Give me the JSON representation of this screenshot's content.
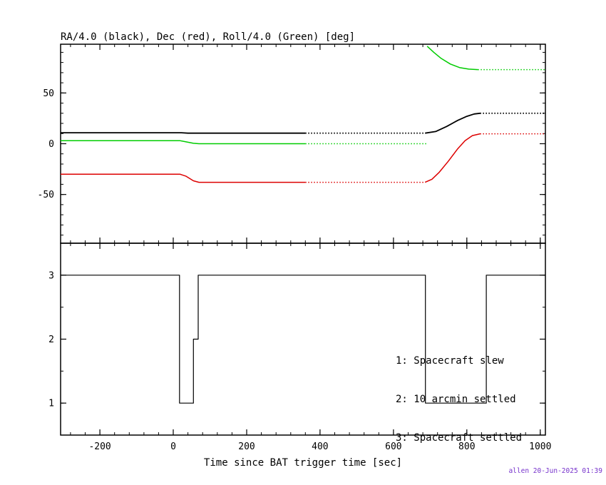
{
  "title": "RA/4.0 (black), Dec (red), Roll/4.0 (Green) [deg]",
  "xlabel": "Time since BAT trigger time [sec]",
  "footer": {
    "text": "allen 20-Jun-2025 01:39",
    "color": "#7733cc"
  },
  "colors": {
    "ra": "#000000",
    "dec": "#dd0000",
    "roll": "#00cc00",
    "frame": "#000000"
  },
  "chart_data": [
    {
      "type": "line",
      "title": "RA/4.0 (black), Dec (red), Roll/4.0 (Green) [deg]",
      "xlim": [
        -307,
        1014
      ],
      "ylim": [
        -98,
        98
      ],
      "x_minor": 40,
      "y_minor": 10,
      "grid": false,
      "show_x_labels": false,
      "xticks": [
        {
          "v": -200,
          "label": "-200"
        },
        {
          "v": 0,
          "label": "0"
        },
        {
          "v": 200,
          "label": "200"
        },
        {
          "v": 400,
          "label": "400"
        },
        {
          "v": 600,
          "label": "600"
        },
        {
          "v": 800,
          "label": "800"
        },
        {
          "v": 1000,
          "label": "1000"
        }
      ],
      "yticks": [
        {
          "v": 50,
          "label": "50"
        },
        {
          "v": 0,
          "label": "0"
        },
        {
          "v": -50,
          "label": "-50"
        }
      ],
      "series": [
        {
          "name": "RA/4.0 (black)",
          "color": "#000000",
          "width": 1.8,
          "segments": [
            {
              "dash": false,
              "points": [
                [
                  -307,
                  10.8
                ],
                [
                  22,
                  10.8
                ],
                [
                  40,
                  10.4
                ],
                [
                  360,
                  10.4
                ]
              ]
            },
            {
              "dash": true,
              "points": [
                [
                  360,
                  10.4
                ],
                [
                  686,
                  10.4
                ]
              ]
            },
            {
              "dash": false,
              "points": [
                [
                  686,
                  10.4
                ],
                [
                  715,
                  12
                ],
                [
                  745,
                  17
                ],
                [
                  775,
                  23
                ],
                [
                  800,
                  27
                ],
                [
                  820,
                  29.3
                ],
                [
                  836,
                  30
                ]
              ]
            },
            {
              "dash": true,
              "points": [
                [
                  836,
                  30
                ],
                [
                  1014,
                  30
                ]
              ]
            }
          ]
        },
        {
          "name": "Dec (red)",
          "color": "#dd0000",
          "width": 1.5,
          "segments": [
            {
              "dash": false,
              "points": [
                [
                  -307,
                  -30
                ],
                [
                  18,
                  -30
                ],
                [
                  35,
                  -32
                ],
                [
                  55,
                  -36.5
                ],
                [
                  70,
                  -38
                ],
                [
                  360,
                  -38
                ]
              ]
            },
            {
              "dash": true,
              "points": [
                [
                  360,
                  -38
                ],
                [
                  686,
                  -38
                ]
              ]
            },
            {
              "dash": false,
              "points": [
                [
                  686,
                  -38
                ],
                [
                  705,
                  -35
                ],
                [
                  725,
                  -28
                ],
                [
                  750,
                  -17
                ],
                [
                  775,
                  -5
                ],
                [
                  795,
                  3
                ],
                [
                  815,
                  8
                ],
                [
                  836,
                  9.8
                ]
              ]
            },
            {
              "dash": true,
              "points": [
                [
                  836,
                  9.8
                ],
                [
                  1014,
                  9.8
                ]
              ]
            }
          ]
        },
        {
          "name": "Roll/4.0 (Green)",
          "color": "#00cc00",
          "width": 1.5,
          "segments": [
            {
              "dash": false,
              "points": [
                [
                  -307,
                  3
                ],
                [
                  18,
                  3
                ],
                [
                  35,
                  1.8
                ],
                [
                  55,
                  0.4
                ],
                [
                  70,
                  0
                ],
                [
                  360,
                  0
                ]
              ]
            },
            {
              "dash": true,
              "points": [
                [
                  360,
                  0
                ],
                [
                  692,
                  0
                ]
              ]
            },
            {
              "dash": false,
              "points": [
                [
                  692,
                  96
                ],
                [
                  710,
                  90
                ],
                [
                  730,
                  84
                ],
                [
                  755,
                  78.5
                ],
                [
                  780,
                  75
                ],
                [
                  805,
                  73.5
                ],
                [
                  830,
                  73
                ]
              ]
            },
            {
              "dash": true,
              "points": [
                [
                  830,
                  73
                ],
                [
                  1014,
                  73
                ]
              ]
            }
          ]
        }
      ]
    },
    {
      "type": "step",
      "xlabel": "Time since BAT trigger time [sec]",
      "xlim": [
        -307,
        1014
      ],
      "ylim": [
        0.5,
        3.5
      ],
      "x_minor": 40,
      "y_minor": 0.5,
      "grid": false,
      "show_x_labels": true,
      "legend": [
        "1: Spacecraft slew",
        "2: 10 arcmin settled",
        "3: Spacecraft settled"
      ],
      "xticks": [
        {
          "v": -200,
          "label": "-200"
        },
        {
          "v": 0,
          "label": "0"
        },
        {
          "v": 200,
          "label": "200"
        },
        {
          "v": 400,
          "label": "400"
        },
        {
          "v": 600,
          "label": "600"
        },
        {
          "v": 800,
          "label": "800"
        },
        {
          "v": 1000,
          "label": "1000"
        }
      ],
      "yticks": [
        {
          "v": 3,
          "label": "3"
        },
        {
          "v": 2,
          "label": "2"
        },
        {
          "v": 1,
          "label": "1"
        }
      ],
      "series": [
        {
          "name": "Spacecraft settled status",
          "color": "#000000",
          "width": 1.2,
          "segments": [
            {
              "dash": false,
              "points": [
                [
                  -307,
                  3
                ],
                [
                  17,
                  3
                ],
                [
                  17,
                  1
                ],
                [
                  55,
                  1
                ],
                [
                  55,
                  2
                ],
                [
                  68,
                  2
                ],
                [
                  68,
                  3
                ],
                [
                  687,
                  3
                ],
                [
                  687,
                  1
                ],
                [
                  853,
                  1
                ],
                [
                  853,
                  3
                ],
                [
                  1014,
                  3
                ]
              ]
            }
          ]
        }
      ]
    }
  ]
}
